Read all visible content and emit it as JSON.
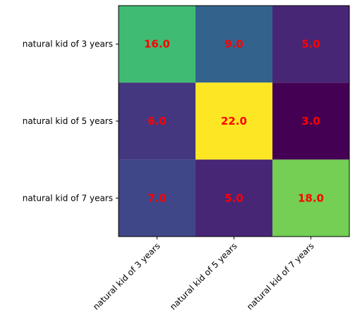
{
  "chart_data": {
    "type": "heatmap",
    "title": "",
    "xlabel": "",
    "ylabel": "",
    "x_categories": [
      "natural kid of 3 years",
      "natural kid of 5 years",
      "natural kid of 7 years"
    ],
    "y_categories": [
      "natural kid of 3 years",
      "natural kid of 5 years",
      "natural kid of 7 years"
    ],
    "values": [
      [
        16.0,
        9.0,
        5.0
      ],
      [
        6.0,
        22.0,
        3.0
      ],
      [
        7.0,
        5.0,
        18.0
      ]
    ],
    "value_format": "one decimal",
    "colormap": "viridis",
    "value_range": [
      3.0,
      22.0
    ],
    "annotation_color": "#ff0000",
    "x_tick_rotation_deg": 45,
    "grid": false,
    "colorbar": false
  }
}
